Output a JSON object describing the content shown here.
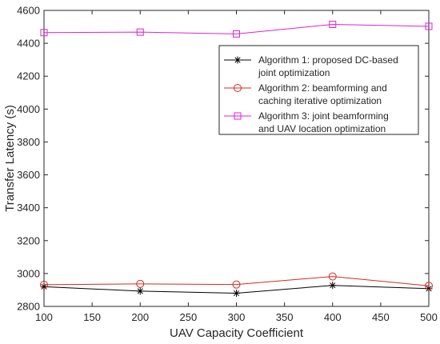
{
  "chart_data": {
    "type": "line",
    "xlabel": "UAV Capacity Coefficient",
    "ylabel": "Transfer Latency (s)",
    "x": [
      100,
      200,
      300,
      400,
      500
    ],
    "xlim": [
      100,
      500
    ],
    "ylim": [
      2800,
      4600
    ],
    "xticks": [
      100,
      150,
      200,
      250,
      300,
      350,
      400,
      450,
      500
    ],
    "yticks": [
      2800,
      3000,
      3200,
      3400,
      3600,
      3800,
      4000,
      4200,
      4400,
      4600
    ],
    "grid": false,
    "legend_position": "top-right",
    "series": [
      {
        "name": "Algorithm 1: proposed DC-based joint optimization",
        "legend_lines": [
          "Algorithm 1: proposed DC-based",
          "joint optimization"
        ],
        "values": [
          2920,
          2893,
          2880,
          2928,
          2908
        ],
        "color": "#000000",
        "marker": "asterisk"
      },
      {
        "name": "Algorithm 2: beamforming and caching iterative optimization",
        "legend_lines": [
          "Algorithm 2: beamforming and",
          "caching iterative optimization"
        ],
        "values": [
          2932,
          2937,
          2933,
          2982,
          2925
        ],
        "color": "#d62a1f",
        "marker": "circle"
      },
      {
        "name": "Algorithm 3: joint beamforming and UAV location optimization",
        "legend_lines": [
          "Algorithm 3: joint beamforming",
          "and UAV location optimization"
        ],
        "values": [
          4465,
          4468,
          4457,
          4515,
          4503
        ],
        "color": "#e020d8",
        "marker": "square"
      }
    ]
  }
}
